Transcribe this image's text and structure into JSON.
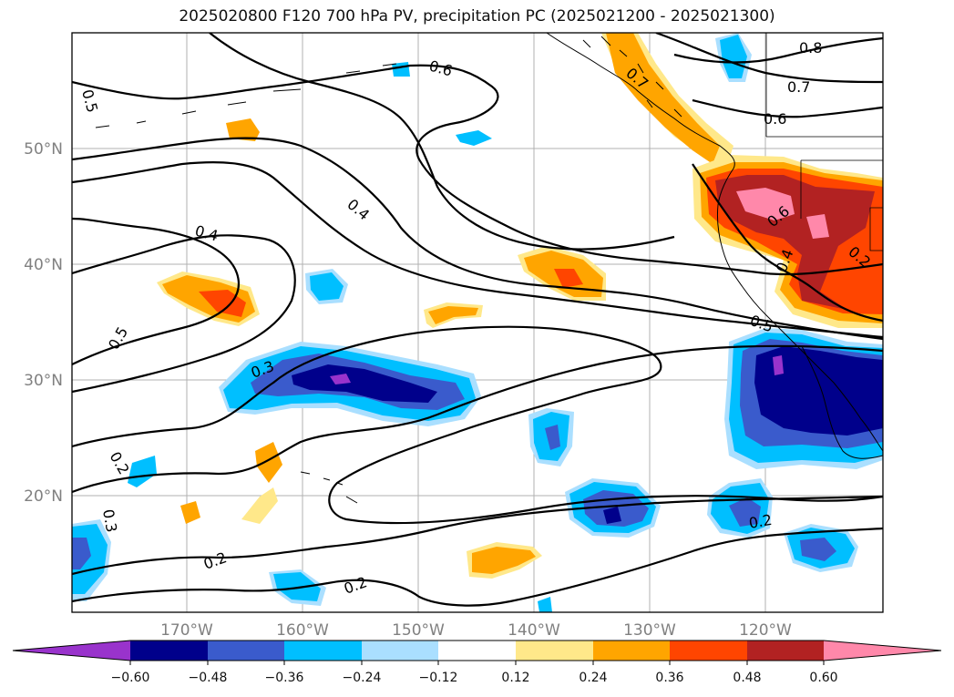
{
  "title": "2025020800 F120 700 hPa PV, precipitation PC (2025021200 - 2025021300)",
  "lat_labels": [
    "50°N",
    "40°N",
    "30°N",
    "20°N"
  ],
  "lon_labels": [
    "170°W",
    "160°W",
    "150°W",
    "140°W",
    "130°W",
    "120°W"
  ],
  "colorbar": {
    "ticks": [
      "−0.60",
      "−0.48",
      "−0.36",
      "−0.24",
      "−0.12",
      "0.12",
      "0.24",
      "0.36",
      "0.48",
      "0.60"
    ],
    "colors": [
      "#9933cc",
      "#00008b",
      "#3a5bcc",
      "#00bfff",
      "#aadfff",
      "#ffffff",
      "#ffe88a",
      "#ffa500",
      "#ff4500",
      "#b22222",
      "#ff88aa"
    ]
  },
  "isoline_labels": [
    "0.5",
    "0.6",
    "0.7",
    "0.8",
    "0.7",
    "0.6",
    "0.4",
    "0.4",
    "0.5",
    "0.3",
    "0.2",
    "0.3",
    "0.2",
    "0.2",
    "0.2",
    "0.5",
    "0.6",
    "0.4",
    "0.2"
  ]
}
